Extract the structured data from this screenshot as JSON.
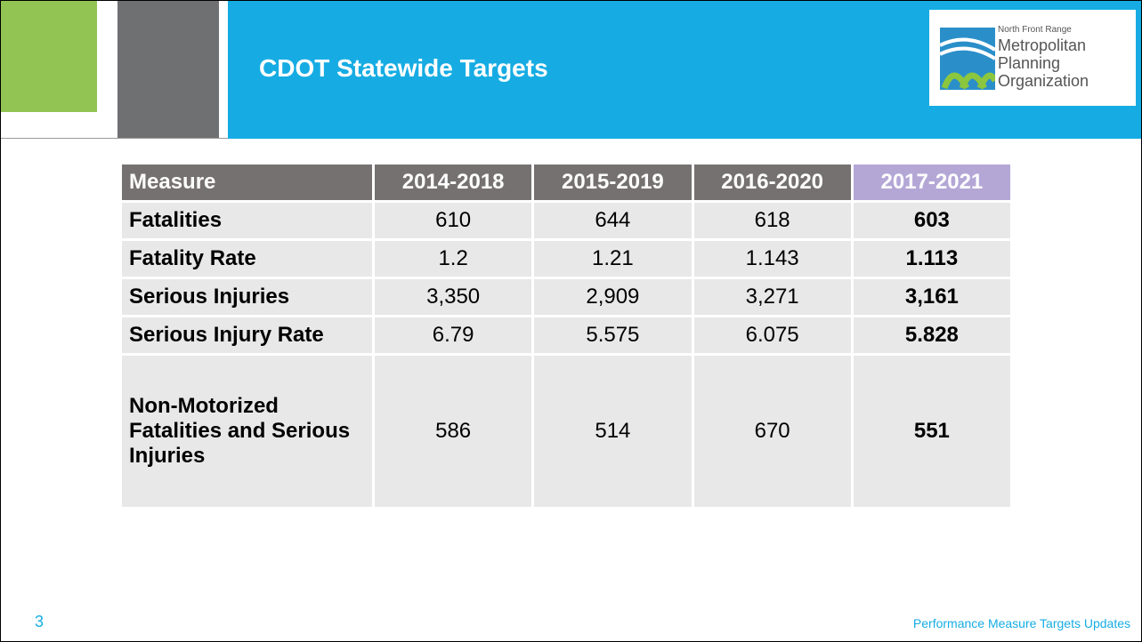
{
  "header": {
    "title": "CDOT Statewide Targets",
    "logo": {
      "lines": [
        "North Front Range",
        "Metropolitan",
        "Planning",
        "Organization"
      ]
    }
  },
  "table": {
    "columns": [
      "Measure",
      "2014-2018",
      "2015-2019",
      "2016-2020",
      "2017-2021"
    ],
    "rows": [
      [
        "Fatalities",
        "610",
        "644",
        "618",
        "603"
      ],
      [
        "Fatality Rate",
        "1.2",
        "1.21",
        "1.143",
        "1.113"
      ],
      [
        "Serious Injuries",
        "3,350",
        "2,909",
        "3,271",
        "3,161"
      ],
      [
        "Serious Injury Rate",
        "6.79",
        "5.575",
        "6.075",
        "5.828"
      ],
      [
        "Non-Motorized Fatalities and Serious Injuries",
        "586",
        "514",
        "670",
        "551"
      ]
    ]
  },
  "footer": {
    "page": "3",
    "text": "Performance Measure Targets Updates"
  }
}
